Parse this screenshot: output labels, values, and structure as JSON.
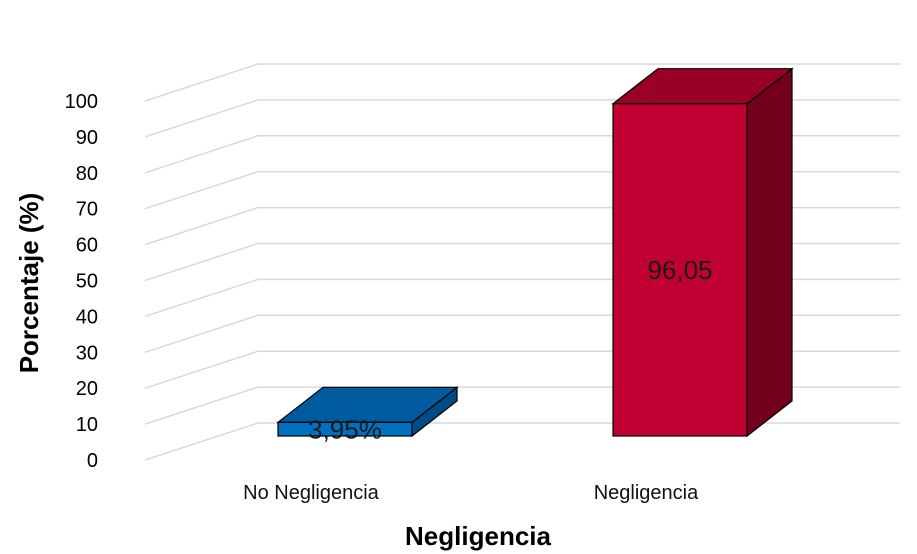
{
  "chart_data": {
    "type": "bar",
    "style": "3d-column",
    "categories": [
      "No Negligencia",
      "Negligencia"
    ],
    "values": [
      3.95,
      96.05
    ],
    "data_labels": [
      "3,95%",
      "96,05"
    ],
    "ylabel": "Porcentaje (%)",
    "xlabel": "Negligencia",
    "ylim": [
      0,
      100
    ],
    "yticks": [
      "0",
      "10",
      "20",
      "30",
      "40",
      "50",
      "60",
      "70",
      "80",
      "90",
      "100"
    ],
    "grid": true,
    "legend": "none",
    "colors": {
      "bars": [
        "#0070c0",
        "#c00030"
      ],
      "bar_tops": [
        "#005a9e",
        "#9a0026"
      ],
      "bar_sides": [
        "#004a85",
        "#72001c"
      ],
      "grid": "#d9d9d9"
    }
  }
}
